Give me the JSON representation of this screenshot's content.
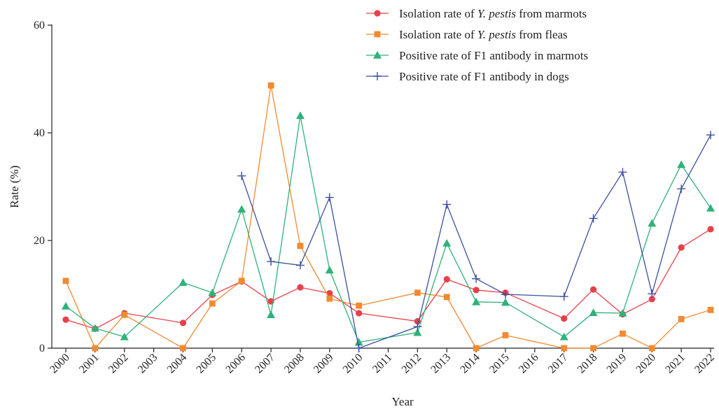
{
  "chart_data": {
    "type": "line",
    "xlabel": "Year",
    "ylabel": "Rate (%)",
    "ylim": [
      0,
      60
    ],
    "yticks": [
      0,
      20,
      40,
      60
    ],
    "grid": false,
    "legend_position": "top-right",
    "categories": [
      "2000",
      "2001",
      "2002",
      "2003",
      "2004",
      "2005",
      "2006",
      "2007",
      "2008",
      "2009",
      "2010",
      "2011",
      "2012",
      "2013",
      "2014",
      "2015",
      "2016",
      "2017",
      "2018",
      "2019",
      "2020",
      "2021",
      "2022"
    ],
    "series": [
      {
        "name_prefix": "Isolation rate of ",
        "name_italic": "Y. pestis",
        "name_suffix": " from marmots",
        "color": "#e8404a",
        "marker": "circle",
        "values": [
          5.3,
          3.6,
          6.5,
          null,
          4.7,
          9.9,
          12.4,
          8.7,
          11.3,
          10.2,
          6.5,
          null,
          5.0,
          12.8,
          10.8,
          10.3,
          null,
          5.5,
          10.9,
          6.3,
          9.1,
          18.7,
          22.1
        ]
      },
      {
        "name_prefix": "Isolation rate of ",
        "name_italic": "Y. pestis",
        "name_suffix": " from fleas",
        "color": "#f28a30",
        "marker": "square",
        "values": [
          12.5,
          0,
          6.2,
          null,
          0,
          8.3,
          12.5,
          48.8,
          19.0,
          9.2,
          7.9,
          null,
          10.3,
          9.5,
          0,
          2.4,
          null,
          0,
          0,
          2.7,
          0,
          5.4,
          7.1
        ]
      },
      {
        "name_prefix": "Positive rate of F1 antibody in marmots",
        "name_italic": "",
        "name_suffix": "",
        "color": "#2eb27a",
        "marker": "triangle",
        "values": [
          7.8,
          3.7,
          2.1,
          null,
          12.2,
          10.3,
          25.8,
          6.2,
          43.2,
          14.5,
          1.1,
          null,
          2.9,
          19.5,
          8.6,
          8.5,
          null,
          2.1,
          6.6,
          6.5,
          23.2,
          34.1,
          26.0
        ]
      },
      {
        "name_prefix": "Positive rate of F1 antibody in dogs",
        "name_italic": "",
        "name_suffix": "",
        "color": "#3c4f9e",
        "marker": "plus",
        "values": [
          null,
          null,
          null,
          null,
          null,
          null,
          32.0,
          16.1,
          15.4,
          28.0,
          0,
          null,
          4.0,
          26.7,
          12.9,
          10.0,
          null,
          9.6,
          24.1,
          32.7,
          10.1,
          29.6,
          39.6
        ]
      }
    ]
  }
}
